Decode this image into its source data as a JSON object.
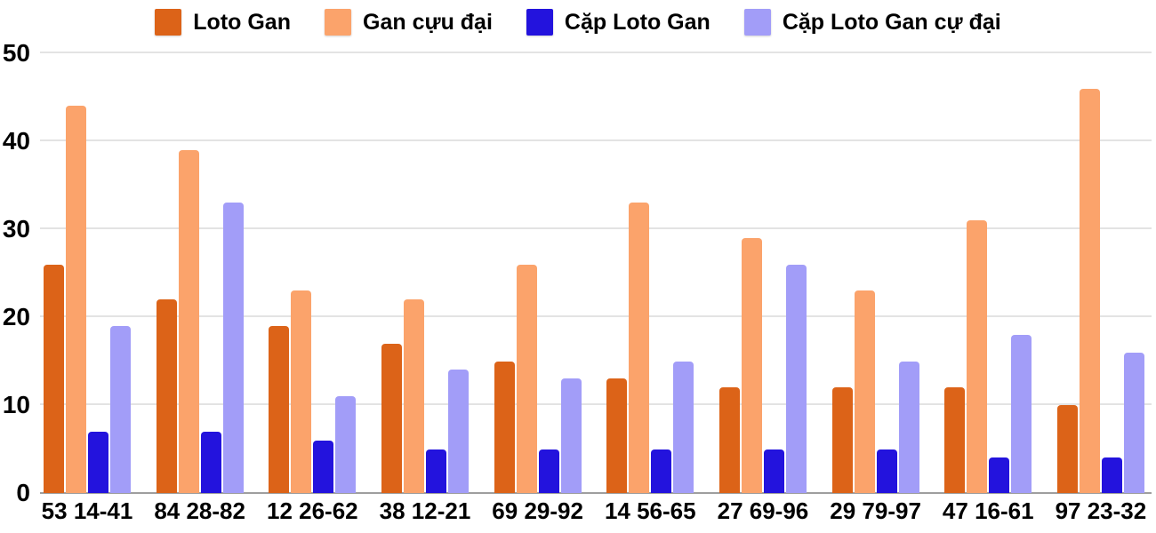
{
  "chart_data": {
    "type": "bar",
    "title": "",
    "xlabel": "",
    "ylabel": "",
    "categories": [
      "53 14-41",
      "84 28-82",
      "12 26-62",
      "38 12-21",
      "69 29-92",
      "14 56-65",
      "27 69-96",
      "29 79-97",
      "47 16-61",
      "97 23-32"
    ],
    "series": [
      {
        "name": "Loto Gan",
        "color": "#dc6318",
        "values": [
          26,
          22,
          19,
          17,
          15,
          13,
          12,
          12,
          12,
          10
        ]
      },
      {
        "name": "Gan cựu đại",
        "color": "#fba36b",
        "values": [
          44,
          39,
          23,
          22,
          26,
          33,
          29,
          23,
          31,
          46
        ]
      },
      {
        "name": "Cặp Loto Gan",
        "color": "#2313dd",
        "values": [
          7,
          7,
          6,
          5,
          5,
          5,
          5,
          5,
          4,
          4
        ]
      },
      {
        "name": "Cặp Loto Gan cự đại",
        "color": "#a29df8",
        "values": [
          19,
          33,
          11,
          14,
          13,
          15,
          26,
          15,
          18,
          16
        ]
      }
    ],
    "ylim": [
      0,
      50
    ],
    "y_ticks": [
      0,
      10,
      20,
      30,
      40,
      50
    ],
    "grid": true,
    "legend_position": "top"
  },
  "colors": {
    "background": "#ffffff",
    "grid_line": "#e3e3e3",
    "axis_line": "#9e9e9e",
    "text": "#000000"
  }
}
